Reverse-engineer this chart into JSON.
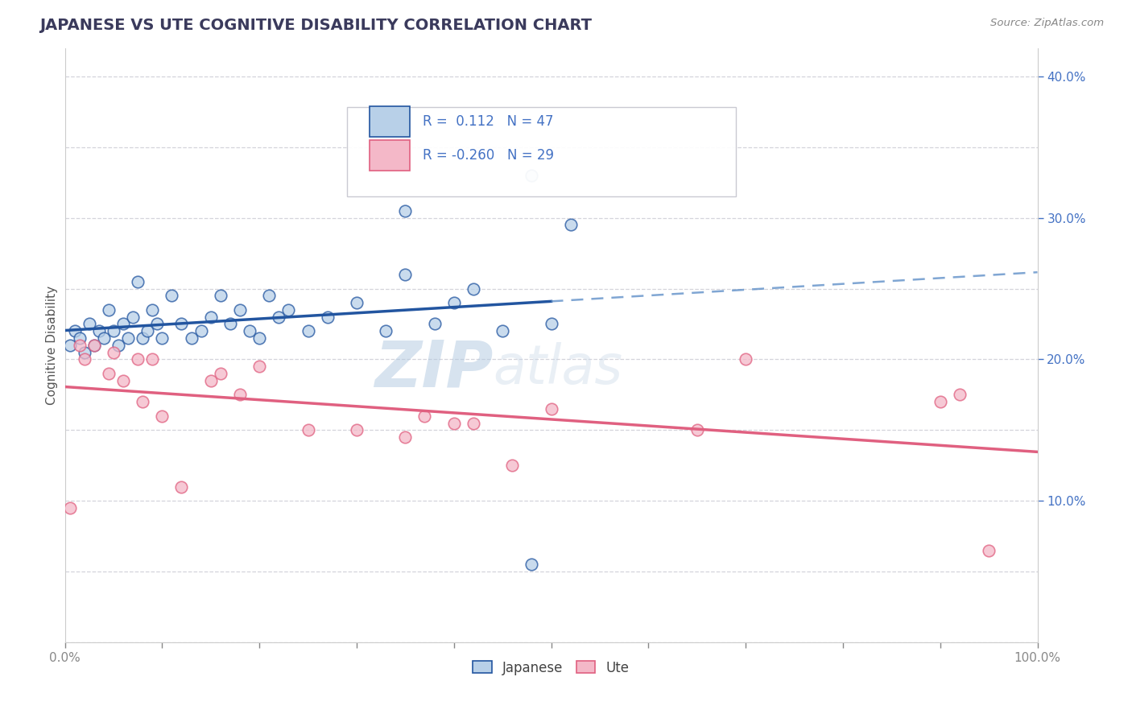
{
  "title": "JAPANESE VS UTE COGNITIVE DISABILITY CORRELATION CHART",
  "source": "Source: ZipAtlas.com",
  "ylabel": "Cognitive Disability",
  "r_japanese": 0.112,
  "n_japanese": 47,
  "r_ute": -0.26,
  "n_ute": 29,
  "background_color": "#ffffff",
  "grid_color": "#d0d0d8",
  "japanese_color": "#b8d0e8",
  "japanese_line_color": "#2255a0",
  "japanese_line_dash_color": "#6090c8",
  "ute_color": "#f4b8c8",
  "ute_line_color": "#e06080",
  "japanese_points_x": [
    0.5,
    1.0,
    1.5,
    2.0,
    2.5,
    3.0,
    3.5,
    4.0,
    4.5,
    5.0,
    5.5,
    6.0,
    6.5,
    7.0,
    7.5,
    8.0,
    8.5,
    9.0,
    9.5,
    10.0,
    11.0,
    12.0,
    13.0,
    14.0,
    15.0,
    16.0,
    17.0,
    18.0,
    19.0,
    20.0,
    21.0,
    22.0,
    23.0,
    25.0,
    27.0,
    30.0,
    33.0,
    35.0,
    38.0,
    40.0,
    42.0,
    45.0,
    48.0,
    50.0,
    52.0,
    48.0,
    35.0
  ],
  "japanese_points_y": [
    21.0,
    22.0,
    21.5,
    20.5,
    22.5,
    21.0,
    22.0,
    21.5,
    23.5,
    22.0,
    21.0,
    22.5,
    21.5,
    23.0,
    25.5,
    21.5,
    22.0,
    23.5,
    22.5,
    21.5,
    24.5,
    22.5,
    21.5,
    22.0,
    23.0,
    24.5,
    22.5,
    23.5,
    22.0,
    21.5,
    24.5,
    23.0,
    23.5,
    22.0,
    23.0,
    24.0,
    22.0,
    26.0,
    22.5,
    24.0,
    25.0,
    22.0,
    33.0,
    22.5,
    29.5,
    5.5,
    30.5
  ],
  "ute_points_x": [
    0.5,
    1.5,
    2.0,
    3.0,
    4.5,
    5.0,
    6.0,
    7.5,
    8.0,
    9.0,
    10.0,
    12.0,
    15.0,
    16.0,
    18.0,
    20.0,
    25.0,
    30.0,
    35.0,
    37.0,
    40.0,
    42.0,
    46.0,
    50.0,
    65.0,
    70.0,
    90.0,
    92.0,
    95.0
  ],
  "ute_points_y": [
    9.5,
    21.0,
    20.0,
    21.0,
    19.0,
    20.5,
    18.5,
    20.0,
    17.0,
    20.0,
    16.0,
    11.0,
    18.5,
    19.0,
    17.5,
    19.5,
    15.0,
    15.0,
    14.5,
    16.0,
    15.5,
    15.5,
    12.5,
    16.5,
    15.0,
    20.0,
    17.0,
    17.5,
    6.5
  ],
  "xlim": [
    0,
    100
  ],
  "ylim": [
    0,
    42
  ],
  "ytick_positions": [
    10,
    20,
    30,
    40
  ],
  "ytick_labels": [
    "10.0%",
    "20.0%",
    "30.0%",
    "40.0%"
  ],
  "xtick_positions": [
    0,
    10,
    20,
    30,
    40,
    50,
    60,
    70,
    80,
    90,
    100
  ],
  "xtick_labels": [
    "0.0%",
    "",
    "",
    "",
    "",
    "",
    "",
    "",
    "",
    "",
    "100.0%"
  ],
  "watermark_zip": "ZIP",
  "watermark_atlas": "atlas",
  "title_color": "#3a3a5c",
  "axis_label_color": "#4472c4",
  "tick_color": "#888888",
  "legend_text_color": "#3a3a5c"
}
